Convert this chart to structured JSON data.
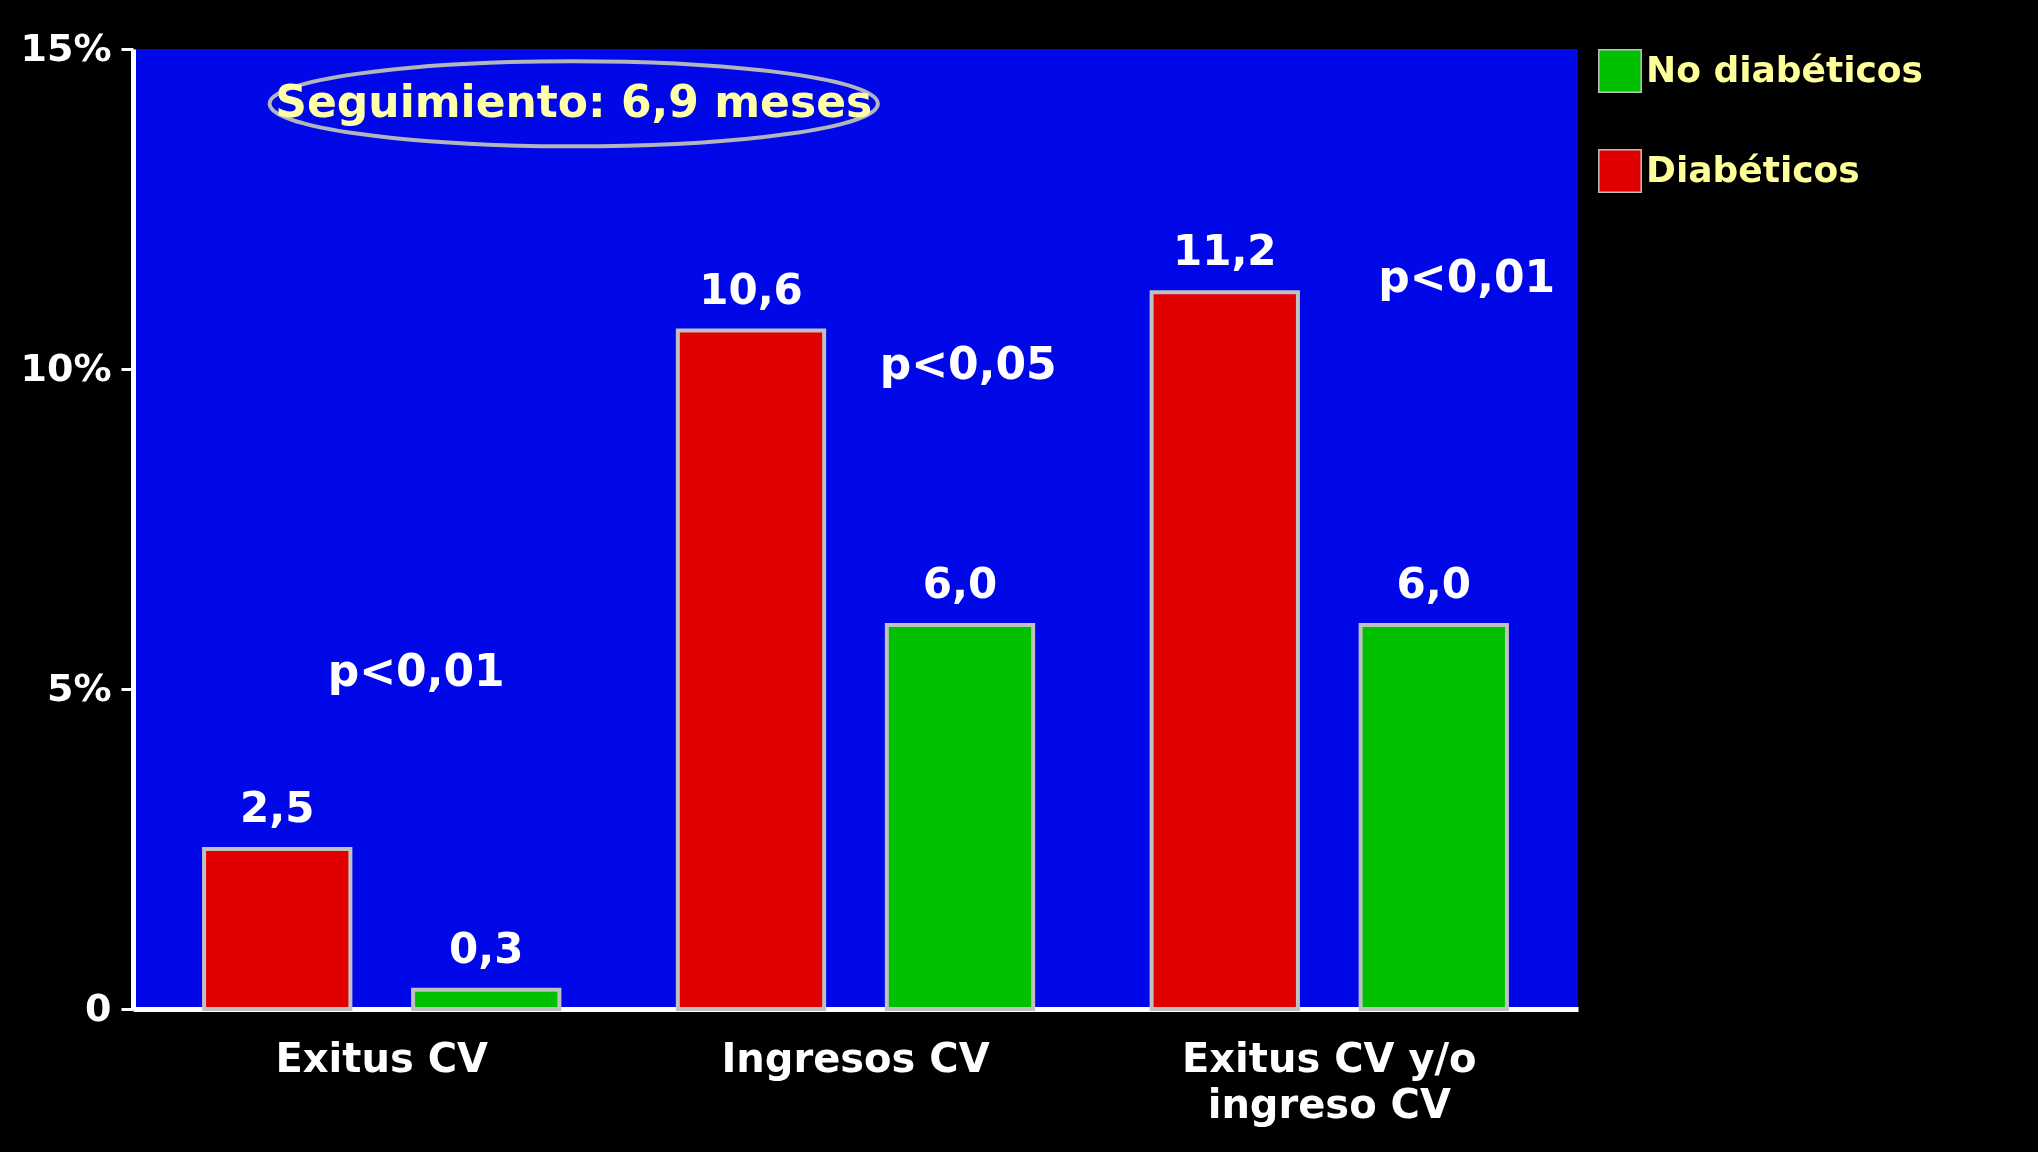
{
  "chart_data": {
    "type": "bar",
    "categories": [
      "Exitus CV",
      "Ingresos CV",
      "Exitus CV y/o ingreso CV"
    ],
    "series": [
      {
        "name": "Diabéticos",
        "color": "#e00000",
        "values": [
          2.5,
          10.6,
          11.2
        ],
        "value_labels": [
          "2,5",
          "10,6",
          "11,2"
        ]
      },
      {
        "name": "No diabéticos",
        "color": "#00c000",
        "values": [
          0.3,
          6.0,
          6.0
        ],
        "value_labels": [
          "0,3",
          "6,0",
          "6,0"
        ]
      }
    ],
    "ylim": [
      0,
      15
    ],
    "yticks": [
      0,
      {
        "value": 5,
        "label": "5%"
      },
      {
        "value": 10,
        "label": "10%"
      },
      {
        "value": 15,
        "label": "15%"
      }
    ],
    "grid": false,
    "legend": "right",
    "annotations": [
      "Seguimiento: 6,9 meses",
      "p<0,01",
      "p<0,05",
      "p<0,01"
    ]
  }
}
